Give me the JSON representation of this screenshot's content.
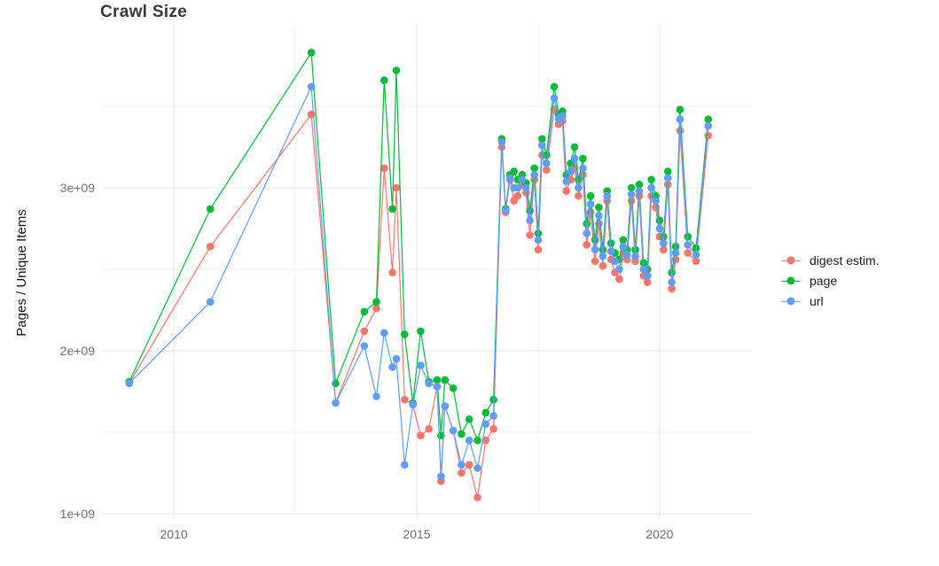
{
  "chart_data": {
    "type": "line",
    "title": "Crawl Size",
    "xlabel": "",
    "ylabel": "Pages / Unique Items",
    "value_unit": "1e9 (billions of pages / unique items)",
    "grid": "on",
    "legend_position": "right",
    "background_color": "#ffffff",
    "grid_major_color": "#e7e7e7",
    "grid_minor_color": "#f3f3f3",
    "tick_label_color": "#6e6e6e",
    "x_range": [
      2008.52,
      2021.9
    ],
    "y_range": [
      0.973,
      4.0
    ],
    "x_ticks": [
      2010,
      2015,
      2020
    ],
    "x_tick_labels": [
      "2010",
      "2015",
      "2020"
    ],
    "x_minor_ticks": [
      2012.5,
      2017.5
    ],
    "y_ticks": [
      1,
      2,
      3
    ],
    "y_tick_labels": [
      "1e+09",
      "2e+09",
      "3e+09"
    ],
    "y_minor_ticks": [
      1.5,
      2.5,
      3.5
    ],
    "x": [
      2009.08,
      2010.75,
      2012.83,
      2013.33,
      2013.92,
      2014.17,
      2014.33,
      2014.5,
      2014.58,
      2014.75,
      2014.92,
      2015.08,
      2015.25,
      2015.42,
      2015.5,
      2015.58,
      2015.75,
      2015.92,
      2016.08,
      2016.25,
      2016.42,
      2016.58,
      2016.75,
      2016.83,
      2016.92,
      2017.0,
      2017.08,
      2017.17,
      2017.25,
      2017.33,
      2017.42,
      2017.5,
      2017.58,
      2017.67,
      2017.83,
      2017.92,
      2018.0,
      2018.08,
      2018.17,
      2018.25,
      2018.33,
      2018.42,
      2018.5,
      2018.58,
      2018.67,
      2018.75,
      2018.83,
      2018.92,
      2019.0,
      2019.08,
      2019.17,
      2019.25,
      2019.33,
      2019.42,
      2019.5,
      2019.58,
      2019.67,
      2019.75,
      2019.83,
      2019.92,
      2020.0,
      2020.08,
      2020.17,
      2020.25,
      2020.33,
      2020.42,
      2020.58,
      2020.75,
      2021.0
    ],
    "series": [
      {
        "id": "digest",
        "name": "digest estim.",
        "color": "#F8766D",
        "values": [
          1.8,
          2.64,
          3.45,
          1.68,
          2.12,
          2.26,
          3.12,
          2.48,
          3.0,
          1.7,
          1.67,
          1.48,
          1.52,
          1.78,
          1.2,
          1.66,
          1.51,
          1.25,
          1.3,
          1.1,
          1.45,
          1.52,
          3.25,
          2.85,
          3.05,
          2.92,
          2.95,
          3.02,
          2.97,
          2.71,
          3.05,
          2.62,
          3.2,
          3.11,
          3.48,
          3.39,
          3.41,
          2.98,
          3.05,
          3.12,
          2.95,
          3.08,
          2.65,
          2.85,
          2.55,
          2.78,
          2.52,
          2.92,
          2.56,
          2.48,
          2.44,
          2.6,
          2.56,
          2.92,
          2.55,
          2.95,
          2.46,
          2.42,
          2.95,
          2.88,
          2.7,
          2.62,
          3.02,
          2.38,
          2.56,
          3.35,
          2.6,
          2.55,
          3.32
        ]
      },
      {
        "id": "page",
        "name": "page",
        "color": "#00BA38",
        "values": [
          1.81,
          2.87,
          3.83,
          1.8,
          2.24,
          2.3,
          3.66,
          2.87,
          3.72,
          2.1,
          1.68,
          2.12,
          1.81,
          1.82,
          1.48,
          1.82,
          1.77,
          1.49,
          1.58,
          1.45,
          1.62,
          1.7,
          3.3,
          2.87,
          3.08,
          3.1,
          3.05,
          3.08,
          3.03,
          2.86,
          3.12,
          2.72,
          3.3,
          3.2,
          3.62,
          3.45,
          3.47,
          3.08,
          3.15,
          3.25,
          3.05,
          3.18,
          2.78,
          2.95,
          2.68,
          2.88,
          2.62,
          2.98,
          2.66,
          2.6,
          2.56,
          2.68,
          2.62,
          3.0,
          2.62,
          3.02,
          2.54,
          2.5,
          3.05,
          2.95,
          2.8,
          2.7,
          3.1,
          2.48,
          2.64,
          3.48,
          2.7,
          2.63,
          3.42
        ]
      },
      {
        "id": "url",
        "name": "url",
        "color": "#619CFF",
        "values": [
          1.8,
          2.3,
          3.62,
          1.68,
          2.03,
          1.72,
          2.11,
          1.9,
          1.95,
          1.3,
          1.67,
          1.91,
          1.8,
          1.78,
          1.23,
          1.66,
          1.51,
          1.3,
          1.45,
          1.28,
          1.55,
          1.6,
          3.28,
          2.86,
          3.06,
          3.0,
          3.0,
          3.05,
          3.0,
          2.8,
          3.08,
          2.68,
          3.26,
          3.15,
          3.55,
          3.42,
          3.44,
          3.04,
          3.1,
          3.18,
          3.0,
          3.12,
          2.72,
          2.9,
          2.62,
          2.83,
          2.58,
          2.95,
          2.61,
          2.55,
          2.5,
          2.64,
          2.59,
          2.96,
          2.58,
          2.98,
          2.5,
          2.46,
          3.0,
          2.92,
          2.75,
          2.66,
          3.06,
          2.42,
          2.6,
          3.42,
          2.65,
          2.59,
          3.38
        ]
      }
    ]
  }
}
